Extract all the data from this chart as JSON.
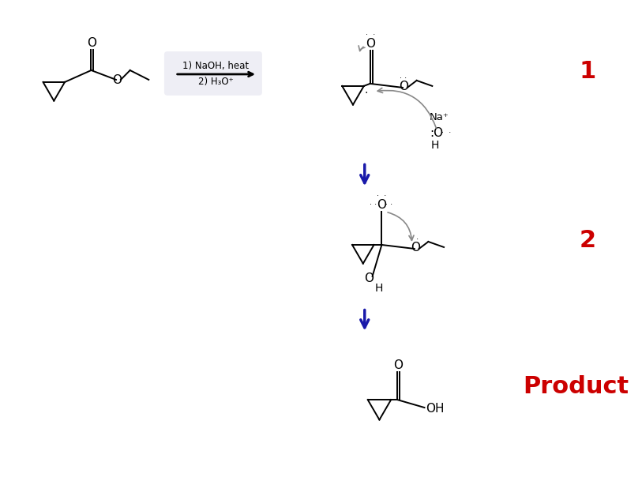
{
  "background_color": "#ffffff",
  "fig_width": 8.13,
  "fig_height": 6.09,
  "dpi": 100,
  "step1_label": "1",
  "step2_label": "2",
  "product_label": "Product",
  "step1_color": "#cc0000",
  "step2_color": "#cc0000",
  "product_color": "#cc0000",
  "arrow_conditions_line1": "1) NaOH, heat",
  "arrow_conditions_line2": "2) H₃O⁺",
  "bond_color": "#000000",
  "down_arrow_color": "#1a1aaa",
  "curve_arrow_color": "#888888",
  "box_color": "#eeeef5"
}
